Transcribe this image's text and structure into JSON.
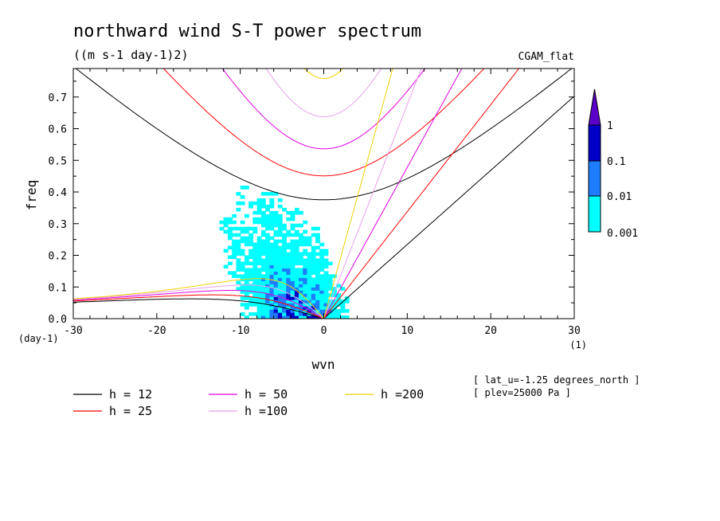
{
  "chart_data": {
    "type": "heatmap",
    "title": "northward wind S-T power spectrum",
    "units": "((m s-1 day-1)2)",
    "dataset_label": "CGAM_flat",
    "xlabel": "wvn",
    "ylabel": "freq",
    "x_unit_label": "(1)",
    "y_unit_label": "(day-1)",
    "xlim": [
      -30,
      30
    ],
    "ylim": [
      0,
      0.79
    ],
    "x_ticks": [
      -30,
      -20,
      -10,
      0,
      10,
      20,
      30
    ],
    "x_tick_labels": [
      "-30",
      "-20",
      "-10",
      "0",
      "10",
      "20",
      "30"
    ],
    "y_ticks": [
      0.0,
      0.1,
      0.2,
      0.3,
      0.4,
      0.5,
      0.6,
      0.7
    ],
    "y_tick_labels": [
      "0.0",
      "0.1",
      "0.2",
      "0.3",
      "0.4",
      "0.5",
      "0.6",
      "0.7"
    ],
    "colorbar": {
      "levels": [
        0.001,
        0.01,
        0.1,
        1
      ],
      "labels": [
        "0.001",
        "0.01",
        "0.1",
        "1"
      ],
      "colors": [
        "#00ffff",
        "#1e7dff",
        "#0000c8",
        "#5a00c8"
      ]
    },
    "dispersion_curves": [
      {
        "name": "h = 12",
        "h": 12,
        "color": "#000000"
      },
      {
        "name": "h = 25",
        "h": 25,
        "color": "#ff0000"
      },
      {
        "name": "h = 50",
        "h": 50,
        "color": "#e000e0"
      },
      {
        "name": "h =100",
        "h": 100,
        "color": "#e8a0e8"
      },
      {
        "name": "h =200",
        "h": 200,
        "color": "#f0d000"
      }
    ],
    "annotations": [
      "[ lat_u=-1.25 degrees_north ]",
      "[ plev=25000 Pa ]"
    ]
  }
}
